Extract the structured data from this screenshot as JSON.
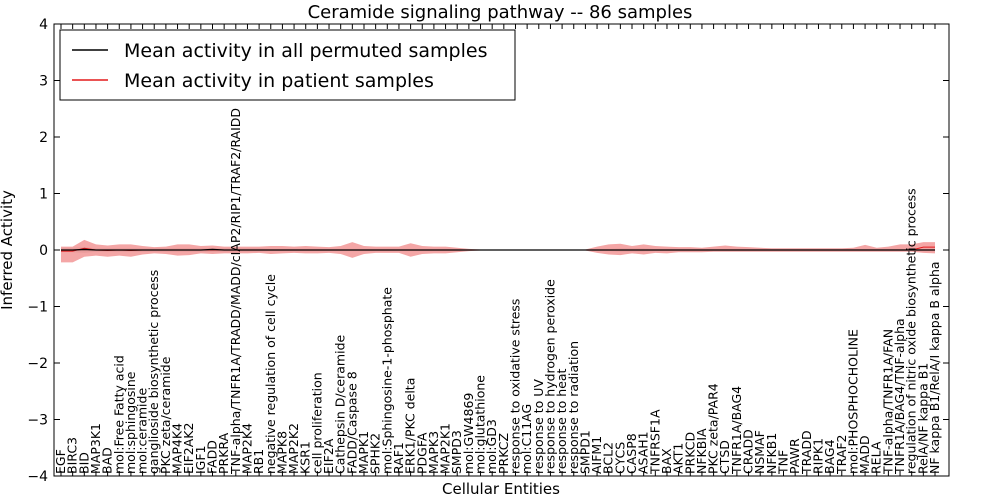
{
  "chart_data": {
    "type": "line",
    "title": "Ceramide signaling pathway -- 86 samples",
    "xlabel": "Cellular Entities",
    "ylabel": "Inferred Activity",
    "ylim": [
      -4,
      4
    ],
    "yticks": [
      -4,
      -3,
      -2,
      -1,
      0,
      1,
      2,
      3,
      4
    ],
    "grid": false,
    "legend_position": "top-left",
    "categories": [
      "EGF",
      "BIRC3",
      "BID",
      "MAP3K1",
      "BAD",
      "mol:Free Fatty acid",
      "mol:sphingosine",
      "mol:ceramide",
      "ganglioside biosynthetic process",
      "PKC zeta/ceramide",
      "MAP4K4",
      "EIF2AK2",
      "IGF1",
      "FADD",
      "PRKRA",
      "TNF-alpha/TNFR1A/TRADD/MADD/cIAP2/RIP1/TRAF2/RAIDD",
      "MAP2K4",
      "RB1",
      "negative regulation of cell cycle",
      "MAPK8",
      "MAP2K2",
      "KSR1",
      "cell proliferation",
      "EIF2A",
      "Cathepsin D/ceramide",
      "FADD/Caspase 8",
      "MAPK1",
      "SPHK2",
      "mol:Sphingosine-1-phosphate",
      "RAF1",
      "ERK1/PKC delta",
      "PDGFA",
      "MAPK3",
      "MAP2K1",
      "SMPD3",
      "mol:GW4869",
      "mol:glutathione",
      "mol:GD3",
      "PRKCZ",
      "response to oxidative stress",
      "mol:C11AG",
      "response to UV",
      "response to hydrogen peroxide",
      "response to heat",
      "response to radiation",
      "SMPD1",
      "AIFM1",
      "BCL2",
      "CYCS",
      "CASP8",
      "ASAH1",
      "TNFRSF1A",
      "BAX",
      "AKT1",
      "PRKCD",
      "NFKBIA",
      "PKC zeta/PAR4",
      "CTSD",
      "TNFR1A/BAG4",
      "CRADD",
      "NSMAF",
      "NFKB1",
      "TNF",
      "PAWR",
      "TRADD",
      "RIPK1",
      "BAG4",
      "TRAF2",
      "mol:PHOSPHOCHOLINE",
      "MADD",
      "RELA",
      "TNF-alpha/TNFR1A/FAN",
      "TNFR1A/BAG4/TNF-alpha",
      "regulation of nitric oxide biosynthetic process",
      "RelA/NF kappa B1",
      "NF kappa B1/RelA/I kappa B alpha"
    ],
    "series": [
      {
        "name": "Mean activity in all permuted samples",
        "color": "#000000",
        "values": [
          0.0,
          0.0,
          0.01,
          0.0,
          0.0,
          0.0,
          0.0,
          0.0,
          0.0,
          0.0,
          0.0,
          0.0,
          0.0,
          0.01,
          0.0,
          0.0,
          0.0,
          0.0,
          0.0,
          0.0,
          0.0,
          0.0,
          0.0,
          0.0,
          0.0,
          0.0,
          0.0,
          0.0,
          0.0,
          0.0,
          0.0,
          0.0,
          0.0,
          0.0,
          0.0,
          0.0,
          0.0,
          0.0,
          0.0,
          0.0,
          0.0,
          0.0,
          0.0,
          0.0,
          0.0,
          0.0,
          0.0,
          0.0,
          0.0,
          0.0,
          0.0,
          0.0,
          0.0,
          0.0,
          0.0,
          0.0,
          0.0,
          0.0,
          0.0,
          0.0,
          0.0,
          0.0,
          0.0,
          0.0,
          0.0,
          0.0,
          0.0,
          0.0,
          0.0,
          0.0,
          0.0,
          0.0,
          0.0,
          0.0,
          0.0,
          0.0
        ],
        "band_low": [
          -0.04,
          -0.04,
          -0.05,
          -0.03,
          -0.03,
          -0.03,
          -0.03,
          -0.03,
          -0.03,
          -0.03,
          -0.03,
          -0.03,
          -0.03,
          -0.03,
          -0.03,
          -0.03,
          -0.03,
          -0.03,
          -0.02,
          -0.02,
          -0.02,
          -0.02,
          -0.02,
          -0.02,
          -0.02,
          -0.02,
          -0.02,
          -0.02,
          -0.02,
          -0.02,
          -0.02,
          -0.02,
          -0.02,
          -0.02,
          -0.02,
          -0.01,
          -0.01,
          -0.01,
          -0.01,
          -0.01,
          -0.01,
          -0.01,
          -0.01,
          -0.01,
          -0.01,
          -0.01,
          -0.02,
          -0.02,
          -0.03,
          -0.03,
          -0.03,
          -0.02,
          -0.02,
          -0.02,
          -0.02,
          -0.02,
          -0.02,
          -0.02,
          -0.02,
          -0.02,
          -0.02,
          -0.02,
          -0.02,
          -0.02,
          -0.02,
          -0.02,
          -0.02,
          -0.02,
          -0.02,
          -0.02,
          -0.02,
          -0.02,
          -0.02,
          -0.02,
          -0.02,
          -0.02
        ],
        "band_high": [
          0.04,
          0.04,
          0.05,
          0.03,
          0.03,
          0.03,
          0.03,
          0.03,
          0.03,
          0.03,
          0.03,
          0.03,
          0.03,
          0.03,
          0.03,
          0.03,
          0.03,
          0.03,
          0.02,
          0.02,
          0.02,
          0.02,
          0.02,
          0.02,
          0.02,
          0.02,
          0.02,
          0.02,
          0.02,
          0.02,
          0.02,
          0.02,
          0.02,
          0.02,
          0.02,
          0.01,
          0.01,
          0.01,
          0.01,
          0.01,
          0.01,
          0.01,
          0.01,
          0.01,
          0.01,
          0.01,
          0.02,
          0.02,
          0.03,
          0.03,
          0.03,
          0.02,
          0.02,
          0.02,
          0.02,
          0.02,
          0.02,
          0.02,
          0.02,
          0.02,
          0.02,
          0.02,
          0.02,
          0.02,
          0.02,
          0.02,
          0.02,
          0.02,
          0.02,
          0.02,
          0.02,
          0.02,
          0.02,
          0.02,
          0.02,
          0.02
        ]
      },
      {
        "name": "Mean activity in patient samples",
        "color": "#e41a1c",
        "values": [
          -0.02,
          -0.02,
          0.03,
          0.0,
          -0.01,
          0.0,
          -0.01,
          0.0,
          0.0,
          0.0,
          0.0,
          0.0,
          0.0,
          0.0,
          0.0,
          0.0,
          0.0,
          0.0,
          0.0,
          0.0,
          0.0,
          0.0,
          0.0,
          0.0,
          0.0,
          0.0,
          0.0,
          0.0,
          0.0,
          0.0,
          0.0,
          0.0,
          0.0,
          0.0,
          0.0,
          0.0,
          0.0,
          0.0,
          0.0,
          0.0,
          0.0,
          0.0,
          0.0,
          0.0,
          0.0,
          0.0,
          0.0,
          0.0,
          0.0,
          0.0,
          0.0,
          0.0,
          0.0,
          0.0,
          0.0,
          0.0,
          0.0,
          0.0,
          0.0,
          0.0,
          0.0,
          0.0,
          0.0,
          0.0,
          0.0,
          0.0,
          0.0,
          0.0,
          0.0,
          0.0,
          0.0,
          0.0,
          0.0,
          0.0,
          0.05,
          0.05
        ],
        "band_low": [
          -0.22,
          -0.22,
          -0.12,
          -0.1,
          -0.12,
          -0.1,
          -0.12,
          -0.08,
          -0.06,
          -0.07,
          -0.1,
          -0.09,
          -0.06,
          -0.07,
          -0.06,
          -0.06,
          -0.06,
          -0.05,
          -0.07,
          -0.06,
          -0.05,
          -0.06,
          -0.06,
          -0.05,
          -0.07,
          -0.14,
          -0.07,
          -0.05,
          -0.05,
          -0.05,
          -0.12,
          -0.07,
          -0.06,
          -0.06,
          -0.04,
          -0.02,
          -0.01,
          -0.01,
          -0.01,
          -0.01,
          -0.01,
          -0.01,
          -0.01,
          -0.01,
          -0.01,
          -0.01,
          -0.05,
          -0.08,
          -0.09,
          -0.06,
          -0.08,
          -0.05,
          -0.06,
          -0.04,
          -0.04,
          -0.04,
          -0.03,
          -0.03,
          -0.03,
          -0.03,
          -0.03,
          -0.03,
          -0.03,
          -0.03,
          -0.03,
          -0.03,
          -0.03,
          -0.03,
          -0.03,
          -0.03,
          -0.03,
          -0.03,
          -0.03,
          -0.03,
          -0.05,
          -0.06
        ],
        "band_high": [
          0.06,
          0.06,
          0.18,
          0.1,
          0.08,
          0.1,
          0.1,
          0.07,
          0.05,
          0.06,
          0.1,
          0.1,
          0.07,
          0.08,
          0.06,
          0.06,
          0.06,
          0.06,
          0.07,
          0.07,
          0.06,
          0.07,
          0.06,
          0.05,
          0.07,
          0.14,
          0.07,
          0.06,
          0.06,
          0.06,
          0.12,
          0.07,
          0.06,
          0.06,
          0.04,
          0.02,
          0.01,
          0.01,
          0.01,
          0.01,
          0.01,
          0.01,
          0.01,
          0.01,
          0.01,
          0.01,
          0.06,
          0.1,
          0.11,
          0.07,
          0.1,
          0.07,
          0.06,
          0.05,
          0.05,
          0.04,
          0.06,
          0.08,
          0.06,
          0.05,
          0.04,
          0.03,
          0.03,
          0.03,
          0.03,
          0.03,
          0.03,
          0.03,
          0.04,
          0.09,
          0.04,
          0.06,
          0.1,
          0.1,
          0.14,
          0.14
        ]
      }
    ]
  }
}
